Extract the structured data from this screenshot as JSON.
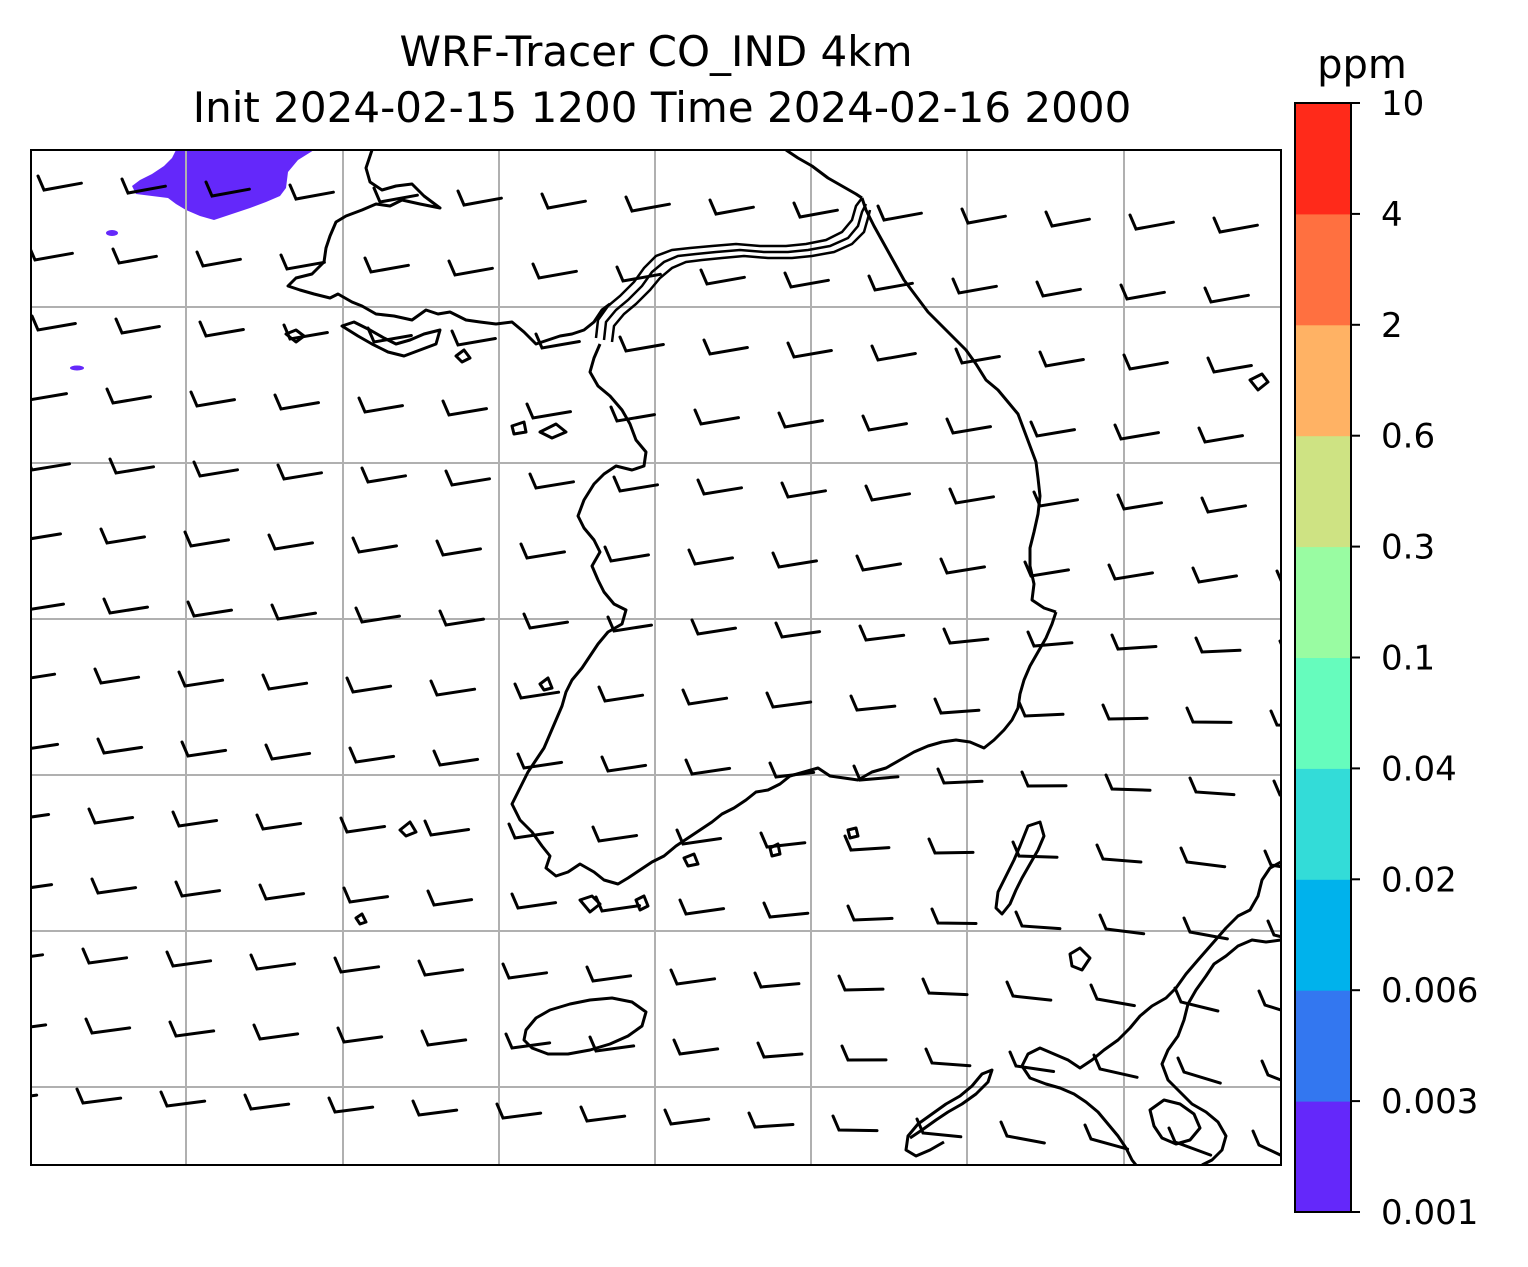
{
  "figure": {
    "title_line1": "WRF-Tracer CO_IND 4km",
    "title_line2": "Init 2024-02-15 1200 Time 2024-02-16 2000"
  },
  "map": {
    "field": "CO_IND tracer concentration",
    "grid_lines": true,
    "coastlines": true,
    "wind_barbs": true,
    "tracer_patches": [
      {
        "region": "upper-left corner",
        "level_range": "0.001-0.003",
        "color": "#6428fa"
      }
    ]
  },
  "colorbar": {
    "unit": "ppm",
    "levels": [
      "0.001",
      "0.003",
      "0.006",
      "0.02",
      "0.04",
      "0.1",
      "0.3",
      "0.6",
      "2",
      "4",
      "10"
    ],
    "colors": [
      "#6428fa",
      "#3377f0",
      "#00b2ec",
      "#33dcd8",
      "#66fcbd",
      "#99fca2",
      "#cee383",
      "#ffb264",
      "#ff7040",
      "#ff2a1a"
    ]
  }
}
